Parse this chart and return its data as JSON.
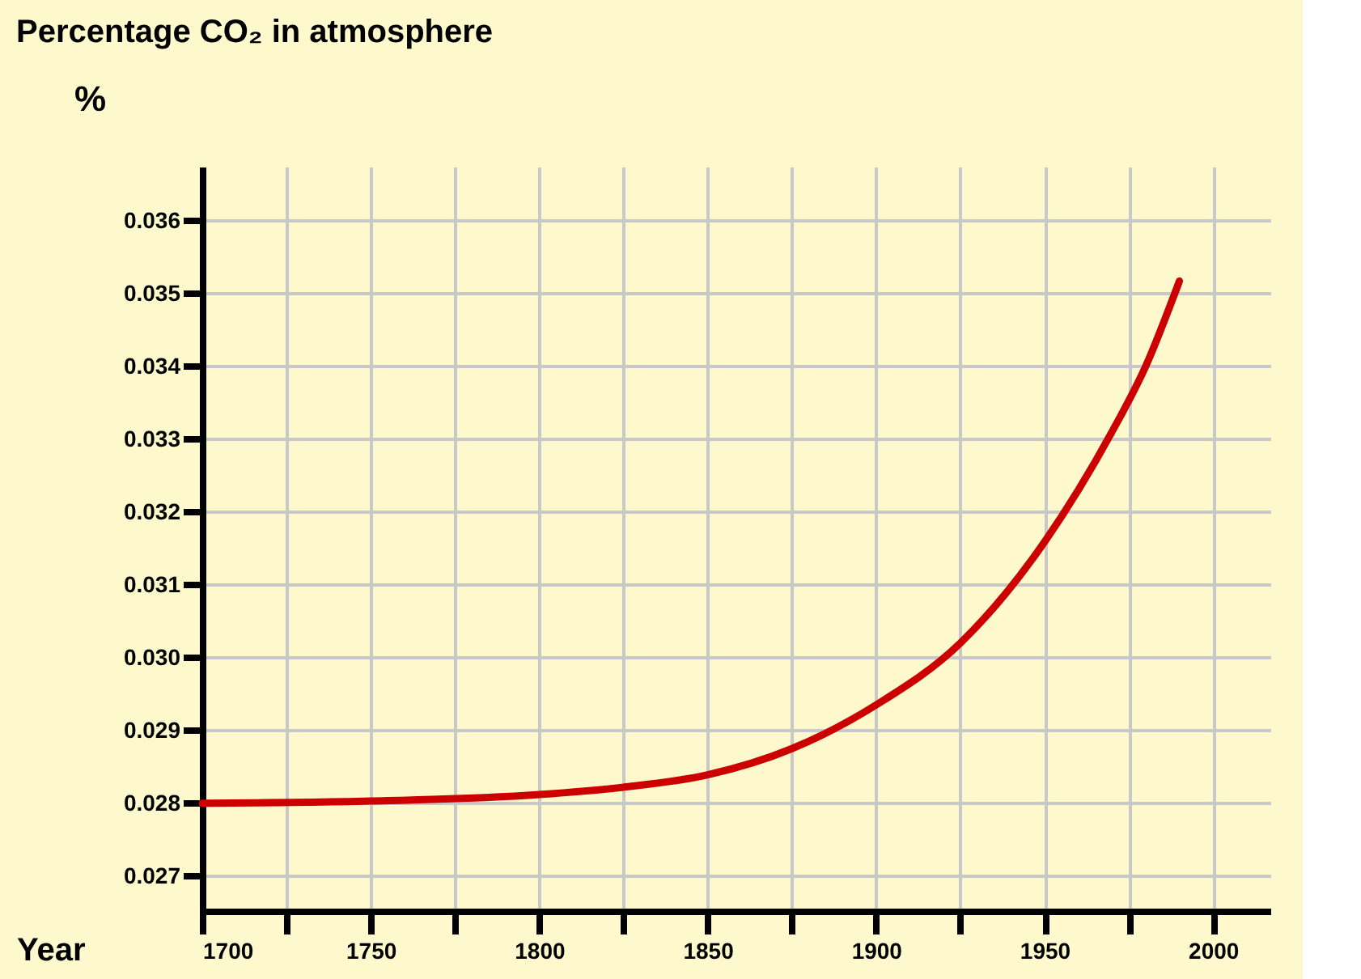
{
  "chart_data": {
    "type": "line",
    "title": "Percentage CO₂ in atmosphere",
    "xlabel": "Year",
    "ylabel": "%",
    "x": [
      1700,
      1750,
      1800,
      1825,
      1850,
      1875,
      1900,
      1925,
      1950,
      1960,
      1970,
      1980,
      1990
    ],
    "series": [
      {
        "color": "#cc0000",
        "values": [
          0.028,
          0.02803,
          0.02812,
          0.02822,
          0.02839,
          0.02875,
          0.02935,
          0.0302,
          0.03159,
          0.0323,
          0.0331,
          0.034,
          0.03517
        ]
      }
    ],
    "xlim": [
      1700,
      2017
    ],
    "xticks": [
      1700,
      {
        "value": 1725,
        "label": null
      },
      1750,
      {
        "value": 1775,
        "label": null
      },
      1800,
      {
        "value": 1825,
        "label": null
      },
      1850,
      {
        "value": 1875,
        "label": null
      },
      1900,
      {
        "value": 1925,
        "label": null
      },
      1950,
      {
        "value": 1975,
        "label": null
      },
      2000
    ],
    "ylim": [
      0.02652,
      0.03674
    ],
    "yticks": [
      {
        "value": 0.027,
        "label": "0.027"
      },
      {
        "value": 0.028,
        "label": "0.028"
      },
      {
        "value": 0.029,
        "label": "0.029"
      },
      {
        "value": 0.03,
        "label": "0.030"
      },
      {
        "value": 0.031,
        "label": "0.031"
      },
      {
        "value": 0.032,
        "label": "0.032"
      },
      {
        "value": 0.033,
        "label": "0.033"
      },
      {
        "value": 0.034,
        "label": "0.034"
      },
      {
        "value": 0.035,
        "label": "0.035"
      },
      {
        "value": 0.036,
        "label": "0.036"
      }
    ],
    "grid": true,
    "line_style": "solid",
    "marker": "none"
  }
}
